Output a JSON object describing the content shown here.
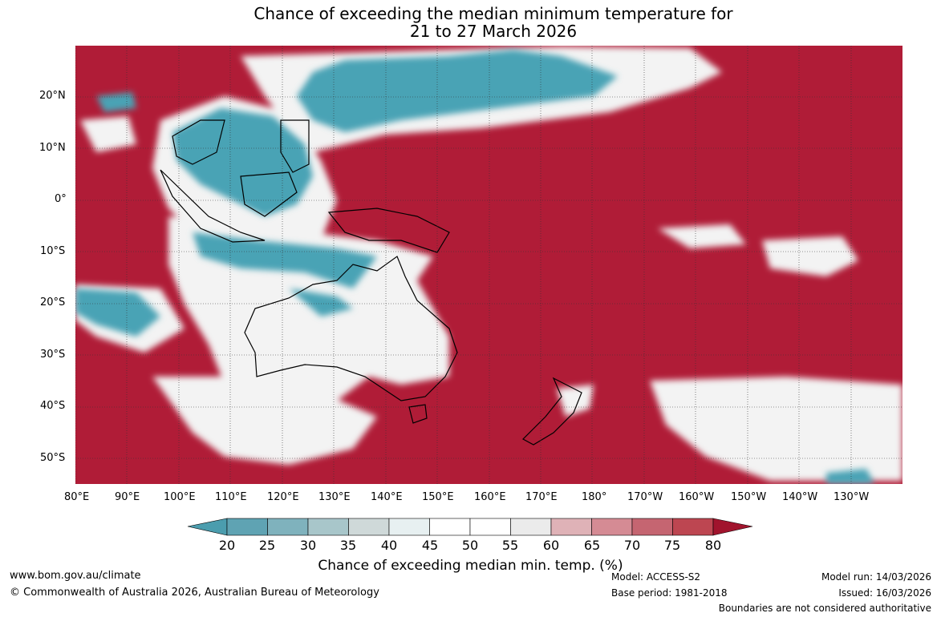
{
  "title": {
    "line1": "Chance of exceeding the median minimum temperature for",
    "line2": "21 to 27 March 2026"
  },
  "map": {
    "lon_labels": [
      "80°E",
      "90°E",
      "100°E",
      "110°E",
      "120°E",
      "130°E",
      "140°E",
      "150°E",
      "160°E",
      "170°E",
      "180°",
      "170°W",
      "160°W",
      "150°W",
      "140°W",
      "130°W"
    ],
    "lat_labels": [
      "20°N",
      "10°N",
      "0°",
      "10°S",
      "20°S",
      "30°S",
      "40°S",
      "50°S"
    ],
    "colors": {
      "ocean_high": "#b01c37",
      "low": "#4aa3b5",
      "neutral": "#ffffff"
    }
  },
  "colorbar": {
    "labels": [
      "20",
      "25",
      "30",
      "35",
      "40",
      "45",
      "50",
      "55",
      "60",
      "65",
      "70",
      "75",
      "80"
    ],
    "colors": [
      "#5fa3b3",
      "#7fb2bd",
      "#a8c6ca",
      "#cfd9d9",
      "#e7f0f1",
      "#ffffff",
      "#ffffff",
      "#ebebeb",
      "#dfb2b7",
      "#d58b94",
      "#c56571",
      "#bd4651"
    ],
    "arrow_low": "#4b9dae",
    "arrow_high": "#a1142d",
    "title": "Chance of exceeding median min. temp. (%)"
  },
  "footer": {
    "website": "www.bom.gov.au/climate",
    "copyright": "© Commonwealth of Australia 2026, Australian Bureau of Meteorology",
    "model": "Model: ACCESS-S2",
    "base_period": "Base period: 1981-2018",
    "model_run": "Model run: 14/03/2026",
    "issued": "Issued: 16/03/2026",
    "boundaries": "Boundaries are not considered authoritative"
  }
}
